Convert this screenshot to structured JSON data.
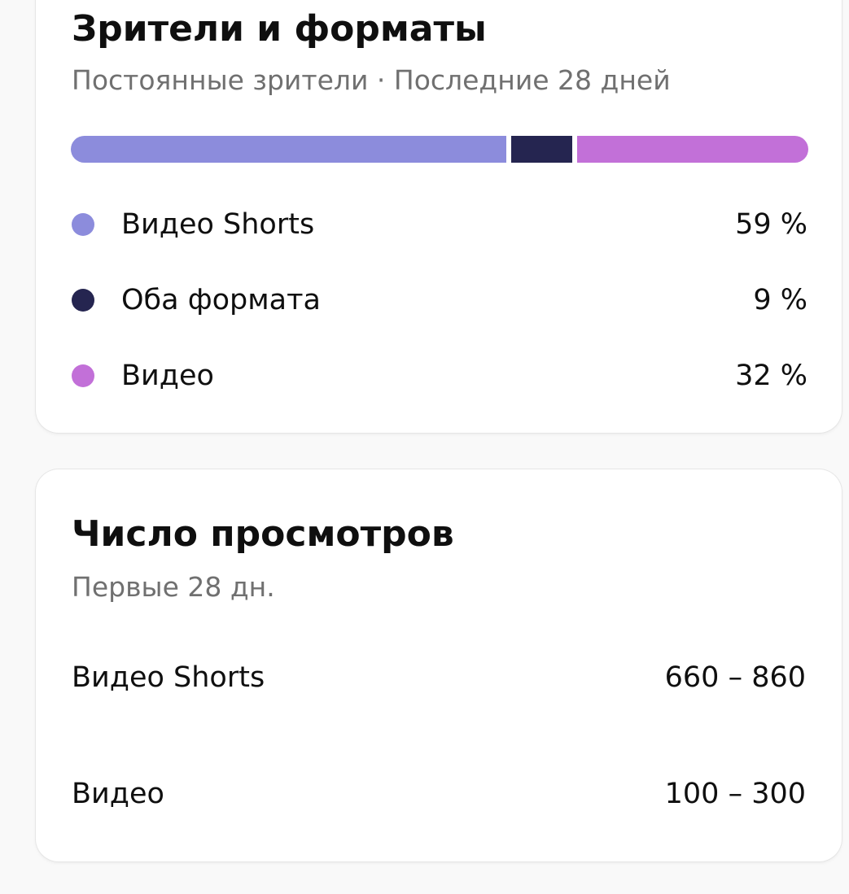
{
  "audience": {
    "title": "Зрители и форматы",
    "subtitle": "Постоянные зрители · Последние 28 дней",
    "items": [
      {
        "label": "Видео Shorts",
        "percent": 59,
        "value": "59 %",
        "color": "#8c8cdc"
      },
      {
        "label": "Оба формата",
        "percent": 9,
        "value": "9 %",
        "color": "#252550"
      },
      {
        "label": "Видео",
        "percent": 32,
        "value": "32 %",
        "color": "#c270d8"
      }
    ]
  },
  "views": {
    "title": "Число просмотров",
    "subtitle": "Первые 28 дн.",
    "rows": [
      {
        "label": "Видео Shorts",
        "value": "660 – 860"
      },
      {
        "label": "Видео",
        "value": "100 – 300"
      }
    ]
  }
}
